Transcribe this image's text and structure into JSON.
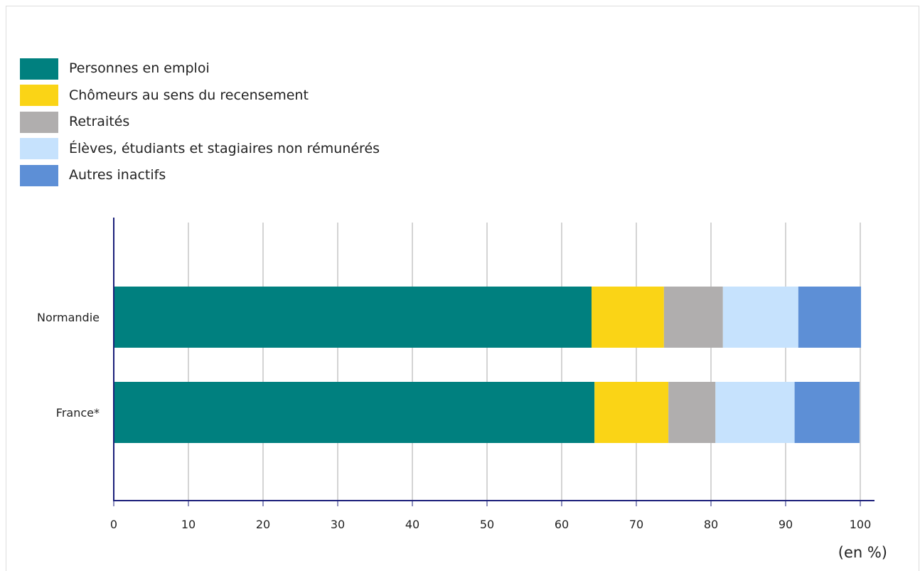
{
  "chart_data": {
    "type": "bar",
    "orientation": "horizontal",
    "stacked": true,
    "categories": [
      "Normandie",
      "France*"
    ],
    "series": [
      {
        "name": "Personnes en emploi",
        "color": "#00807f",
        "values": [
          64.0,
          64.4
        ]
      },
      {
        "name": "Chômeurs au sens du recensement",
        "color": "#fad416",
        "values": [
          9.7,
          9.9
        ]
      },
      {
        "name": "Retraités",
        "color": "#b0aeae",
        "values": [
          7.9,
          6.3
        ]
      },
      {
        "name": "Élèves, étudiants et stagiaires non rémunérés",
        "color": "#c6e2fd",
        "values": [
          10.1,
          10.6
        ]
      },
      {
        "name": "Autres inactifs",
        "color": "#5d8fd6",
        "values": [
          8.4,
          8.7
        ]
      }
    ],
    "x_ticks": [
      0,
      10,
      20,
      30,
      40,
      50,
      60,
      70,
      80,
      90,
      100
    ],
    "xlim": [
      0,
      100
    ],
    "unit_label": "(en %)",
    "grid": "vertical",
    "legend_position": "top-left"
  }
}
